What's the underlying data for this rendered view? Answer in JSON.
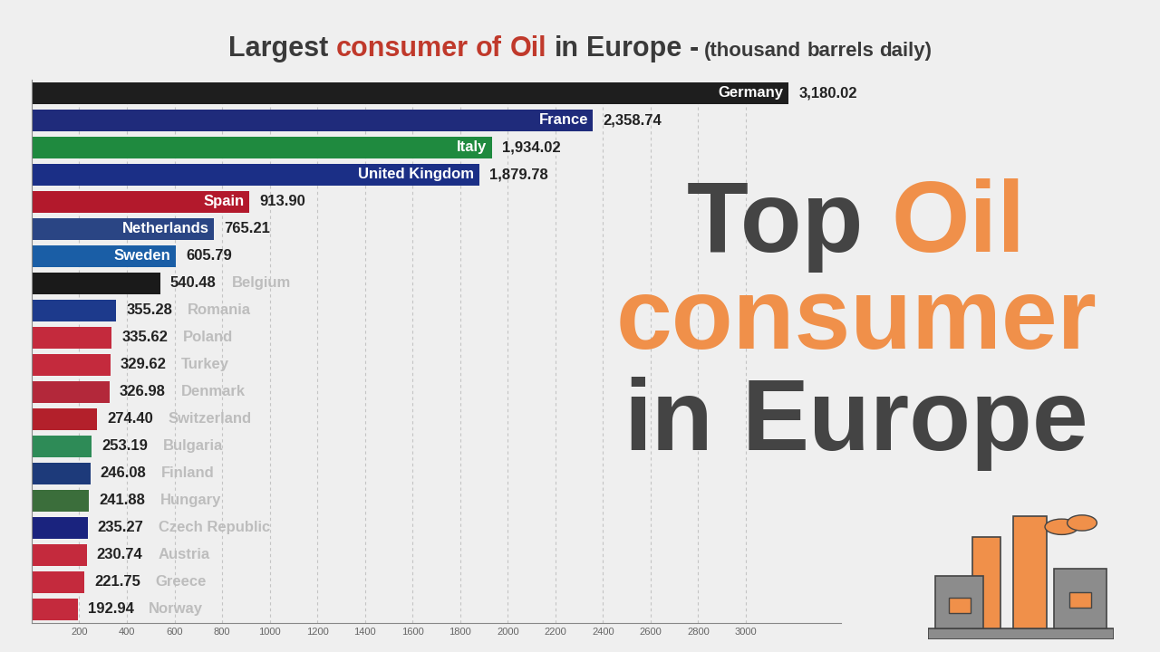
{
  "chart_data": {
    "type": "bar",
    "orientation": "horizontal",
    "title": "Largest consumer of Oil in Europe - (thousand barrels daily)",
    "annotations": [
      "Top Oil consumer in Europe"
    ],
    "categories": [
      "Germany",
      "France",
      "Italy",
      "United Kingdom",
      "Spain",
      "Netherlands",
      "Sweden",
      "Belgium",
      "Romania",
      "Poland",
      "Turkey",
      "Denmark",
      "Switzerland",
      "Bulgaria",
      "Finland",
      "Hungary",
      "Czech Republic",
      "Austria",
      "Greece",
      "Norway"
    ],
    "values": [
      3180.02,
      2358.74,
      1934.02,
      1879.78,
      913.9,
      765.21,
      605.79,
      540.48,
      355.28,
      335.62,
      329.62,
      326.98,
      274.4,
      253.19,
      246.08,
      241.88,
      235.27,
      230.74,
      221.75,
      192.94
    ],
    "value_labels": [
      "3,180.02",
      "2,358.74",
      "1,934.02",
      "1,879.78",
      "913.90",
      "765.21",
      "605.79",
      "540.48",
      "355.28",
      "335.62",
      "329.62",
      "326.98",
      "274.40",
      "253.19",
      "246.08",
      "241.88",
      "235.27",
      "230.74",
      "221.75",
      "192.94"
    ],
    "colors": [
      "#1e1e1e",
      "#1f2b7b",
      "#1f8a3f",
      "#1b2f86",
      "#b3192c",
      "#2a4584",
      "#1a5ea6",
      "#1a1a1a",
      "#1d3a8c",
      "#c42a3d",
      "#c42a3d",
      "#b3283a",
      "#b3202b",
      "#2e8b57",
      "#1d3a7a",
      "#3b6e3b",
      "#1a237e",
      "#c42a3d",
      "#c42a3d",
      "#c42a3d"
    ],
    "xlim": [
      0,
      3400
    ],
    "xticks": [
      200,
      400,
      600,
      800,
      1000,
      1200,
      1400,
      1600,
      1800,
      2000,
      2200,
      2400,
      2600,
      2800,
      3000
    ],
    "grid": true,
    "data_labels": true,
    "tick_labels": "x"
  }
}
